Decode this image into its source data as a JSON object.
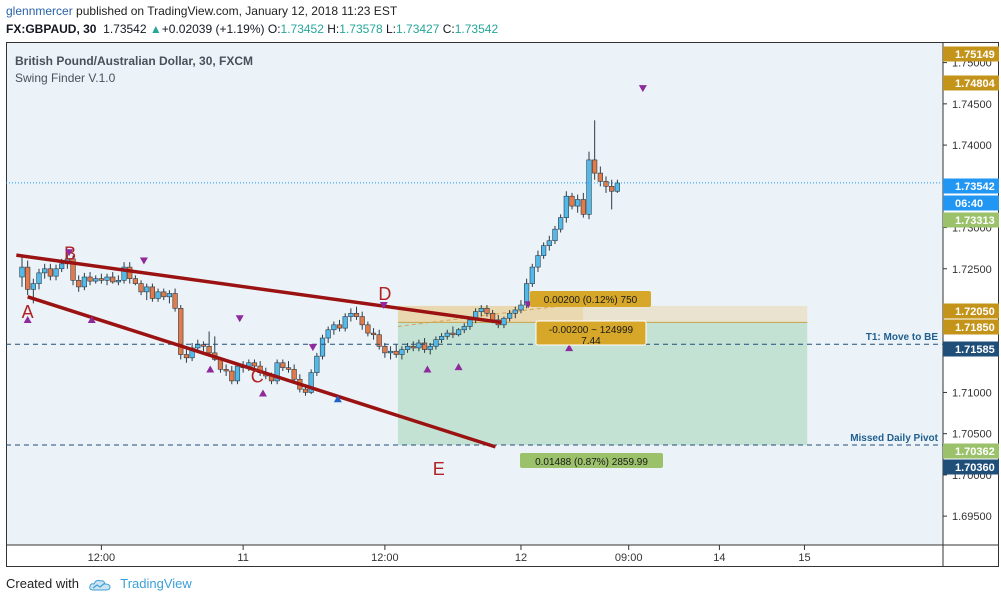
{
  "header": {
    "user": "glennmercer",
    "published_text": "published on TradingView.com, January 12, 2018 11:23 EST",
    "symbol": "FX:GBPAUD, 30",
    "price": "1.73542",
    "change_arrow": "▲",
    "change": "+0.02039 (+1.19%)",
    "o_label": "O:",
    "o": "1.73452",
    "h_label": "H:",
    "h": "1.73578",
    "l_label": "L:",
    "l": "1.73427",
    "c_label": "C:",
    "c": "1.73542"
  },
  "chart_data": {
    "type": "candlestick",
    "title": "British Pound/Australian Dollar, 30, FXCM",
    "indicator": "Swing Finder V.1.0",
    "ylim": [
      1.6915,
      1.7525
    ],
    "y_ticks": [
      "1.75000",
      "1.74500",
      "1.74000",
      "1.73500",
      "1.73000",
      "1.72500",
      "1.72000",
      "1.71500",
      "1.71000",
      "1.70500",
      "1.70000",
      "1.69500"
    ],
    "x_ticks": [
      {
        "label": "12:00",
        "bar": 14
      },
      {
        "label": "11",
        "bar": 39
      },
      {
        "label": "12:00",
        "bar": 64
      },
      {
        "label": "12",
        "bar": 88
      },
      {
        "label": "09:00",
        "bar": 107
      },
      {
        "label": "14",
        "bar": 123
      },
      {
        "label": "15",
        "bar": 138
      }
    ],
    "n_slots": 163,
    "candles": [
      [
        1.724,
        1.7264,
        1.7228,
        1.7252
      ],
      [
        1.7252,
        1.726,
        1.7218,
        1.7225
      ],
      [
        1.7225,
        1.7238,
        1.7208,
        1.7232
      ],
      [
        1.7232,
        1.725,
        1.7225,
        1.7245
      ],
      [
        1.7245,
        1.7256,
        1.7238,
        1.725
      ],
      [
        1.725,
        1.7256,
        1.7236,
        1.7241
      ],
      [
        1.7241,
        1.7255,
        1.7236,
        1.725
      ],
      [
        1.725,
        1.7262,
        1.7246,
        1.7256
      ],
      [
        1.7256,
        1.7268,
        1.725,
        1.7262
      ],
      [
        1.7262,
        1.7266,
        1.723,
        1.7236
      ],
      [
        1.7236,
        1.7242,
        1.7222,
        1.7228
      ],
      [
        1.7228,
        1.7245,
        1.7224,
        1.724
      ],
      [
        1.724,
        1.7246,
        1.723,
        1.7235
      ],
      [
        1.7235,
        1.7242,
        1.7232,
        1.7238
      ],
      [
        1.7238,
        1.7244,
        1.7232,
        1.7236
      ],
      [
        1.7236,
        1.7244,
        1.723,
        1.724
      ],
      [
        1.724,
        1.7246,
        1.7232,
        1.7234
      ],
      [
        1.7234,
        1.7242,
        1.723,
        1.7236
      ],
      [
        1.7236,
        1.7258,
        1.7232,
        1.7252
      ],
      [
        1.7252,
        1.7258,
        1.7232,
        1.7238
      ],
      [
        1.7238,
        1.7242,
        1.723,
        1.7232
      ],
      [
        1.7232,
        1.7236,
        1.7218,
        1.7222
      ],
      [
        1.7222,
        1.7232,
        1.7212,
        1.7228
      ],
      [
        1.7228,
        1.7232,
        1.721,
        1.7214
      ],
      [
        1.7214,
        1.7226,
        1.721,
        1.7222
      ],
      [
        1.7222,
        1.7226,
        1.7212,
        1.7216
      ],
      [
        1.7216,
        1.7224,
        1.7208,
        1.722
      ],
      [
        1.722,
        1.7226,
        1.7198,
        1.7202
      ],
      [
        1.7202,
        1.7206,
        1.714,
        1.7146
      ],
      [
        1.7146,
        1.7152,
        1.7136,
        1.7142
      ],
      [
        1.7142,
        1.716,
        1.7138,
        1.7154
      ],
      [
        1.7154,
        1.7164,
        1.715,
        1.7158
      ],
      [
        1.7158,
        1.7162,
        1.715,
        1.7156
      ],
      [
        1.7156,
        1.7174,
        1.7144,
        1.7148
      ],
      [
        1.7148,
        1.7168,
        1.7138,
        1.714
      ],
      [
        1.714,
        1.7142,
        1.7124,
        1.7128
      ],
      [
        1.7128,
        1.7134,
        1.712,
        1.7126
      ],
      [
        1.7126,
        1.7132,
        1.711,
        1.7114
      ],
      [
        1.7114,
        1.7136,
        1.711,
        1.7132
      ],
      [
        1.7132,
        1.7138,
        1.7124,
        1.713
      ],
      [
        1.713,
        1.714,
        1.7126,
        1.7136
      ],
      [
        1.7136,
        1.714,
        1.7128,
        1.7132
      ],
      [
        1.7132,
        1.7138,
        1.712,
        1.7124
      ],
      [
        1.7124,
        1.713,
        1.7116,
        1.712
      ],
      [
        1.712,
        1.7124,
        1.711,
        1.7114
      ],
      [
        1.7114,
        1.714,
        1.711,
        1.7136
      ],
      [
        1.7136,
        1.714,
        1.7126,
        1.713
      ],
      [
        1.713,
        1.7138,
        1.7124,
        1.7128
      ],
      [
        1.7128,
        1.7134,
        1.7112,
        1.7116
      ],
      [
        1.7116,
        1.7122,
        1.71,
        1.7104
      ],
      [
        1.7104,
        1.711,
        1.7096,
        1.71
      ],
      [
        1.71,
        1.7128,
        1.7098,
        1.7124
      ],
      [
        1.7124,
        1.7148,
        1.712,
        1.7144
      ],
      [
        1.7144,
        1.717,
        1.714,
        1.7166
      ],
      [
        1.7166,
        1.718,
        1.716,
        1.7176
      ],
      [
        1.7176,
        1.7186,
        1.717,
        1.7182
      ],
      [
        1.7182,
        1.7188,
        1.7174,
        1.7178
      ],
      [
        1.7178,
        1.7196,
        1.7174,
        1.7192
      ],
      [
        1.7192,
        1.7202,
        1.7186,
        1.7196
      ],
      [
        1.7196,
        1.7204,
        1.7188,
        1.7192
      ],
      [
        1.7192,
        1.7198,
        1.7176,
        1.7182
      ],
      [
        1.7182,
        1.7186,
        1.7168,
        1.7172
      ],
      [
        1.7172,
        1.7178,
        1.7164,
        1.717
      ],
      [
        1.717,
        1.7176,
        1.7152,
        1.7156
      ],
      [
        1.7156,
        1.716,
        1.7142,
        1.7148
      ],
      [
        1.7148,
        1.7156,
        1.714,
        1.715
      ],
      [
        1.715,
        1.7158,
        1.7142,
        1.7146
      ],
      [
        1.7146,
        1.7156,
        1.714,
        1.7152
      ],
      [
        1.7152,
        1.716,
        1.7148,
        1.7156
      ],
      [
        1.7156,
        1.7162,
        1.715,
        1.7154
      ],
      [
        1.7154,
        1.7164,
        1.715,
        1.716
      ],
      [
        1.716,
        1.7166,
        1.7148,
        1.7152
      ],
      [
        1.7152,
        1.716,
        1.7146,
        1.7156
      ],
      [
        1.7156,
        1.7168,
        1.7152,
        1.7164
      ],
      [
        1.7164,
        1.7172,
        1.716,
        1.7168
      ],
      [
        1.7168,
        1.7176,
        1.7164,
        1.7172
      ],
      [
        1.7172,
        1.718,
        1.7166,
        1.717
      ],
      [
        1.717,
        1.7178,
        1.7168,
        1.7176
      ],
      [
        1.7176,
        1.7184,
        1.7172,
        1.718
      ],
      [
        1.718,
        1.719,
        1.7176,
        1.7188
      ],
      [
        1.7188,
        1.7202,
        1.7184,
        1.7198
      ],
      [
        1.7198,
        1.7206,
        1.7192,
        1.7202
      ],
      [
        1.7202,
        1.7206,
        1.7192,
        1.7196
      ],
      [
        1.7196,
        1.72,
        1.7184,
        1.7188
      ],
      [
        1.7188,
        1.7194,
        1.7178,
        1.7182
      ],
      [
        1.7182,
        1.7192,
        1.7178,
        1.719
      ],
      [
        1.719,
        1.72,
        1.7186,
        1.7196
      ],
      [
        1.7196,
        1.7204,
        1.719,
        1.72
      ],
      [
        1.72,
        1.7212,
        1.7196,
        1.7206
      ],
      [
        1.7206,
        1.7238,
        1.7202,
        1.7232
      ],
      [
        1.7232,
        1.7256,
        1.7228,
        1.7252
      ],
      [
        1.7252,
        1.7272,
        1.7246,
        1.7266
      ],
      [
        1.7266,
        1.7282,
        1.7262,
        1.7278
      ],
      [
        1.7278,
        1.729,
        1.7272,
        1.7284
      ],
      [
        1.7284,
        1.7302,
        1.728,
        1.7298
      ],
      [
        1.7298,
        1.7316,
        1.7294,
        1.7312
      ],
      [
        1.7312,
        1.7344,
        1.7306,
        1.7338
      ],
      [
        1.7338,
        1.7342,
        1.7322,
        1.7326
      ],
      [
        1.7326,
        1.734,
        1.7318,
        1.7334
      ],
      [
        1.7334,
        1.7342,
        1.7312,
        1.7316
      ],
      [
        1.7316,
        1.7392,
        1.731,
        1.7382
      ],
      [
        1.7382,
        1.743,
        1.7358,
        1.7366
      ],
      [
        1.7366,
        1.7374,
        1.735,
        1.7356
      ],
      [
        1.7356,
        1.7362,
        1.7342,
        1.735
      ],
      [
        1.735,
        1.7358,
        1.7322,
        1.7344
      ],
      [
        1.7344,
        1.7358,
        1.7342,
        1.7354
      ]
    ],
    "annotations": {
      "wave_labels": [
        "A",
        "B",
        "C",
        "D",
        "E"
      ],
      "hlines": [
        {
          "label": "T1:  Move to BE",
          "price": 1.71585
        },
        {
          "label": "Missed Daily Pivot",
          "price": 1.70362
        }
      ],
      "position_box": {
        "entry": 1.7185,
        "target": 1.70362,
        "stop": 1.7205,
        "target_label": "0.01488 (0.87%) 2859.99",
        "stop_label": "0.00200 (0.12%) 750",
        "pnl_line1": "-0.00200 ~ 124999",
        "pnl_line2": "7.44"
      }
    },
    "price_tags": [
      {
        "value": "1.75149",
        "color": "#c49319"
      },
      {
        "value": "1.74804",
        "color": "#c49319"
      },
      {
        "value": "1.73542",
        "color": "#2196f3"
      },
      {
        "value": "06:40",
        "color": "#2196f3"
      },
      {
        "value": "1.73313",
        "color": "#9bc26b"
      },
      {
        "value": "1.72050",
        "color": "#c49319"
      },
      {
        "value": "1.71850",
        "color": "#c49319"
      },
      {
        "value": "1.71585",
        "color": "#1f4e79"
      },
      {
        "value": "1.70362",
        "color": "#9bc26b"
      },
      {
        "value": "1.70360",
        "color": "#1f4e79"
      }
    ],
    "colors": {
      "up": "#53b9e9",
      "down": "#e27a4a",
      "wedge": "#9b1212",
      "bg": "#ebf3f8"
    }
  },
  "footer": {
    "created_with": "Created with",
    "brand": "TradingView"
  }
}
